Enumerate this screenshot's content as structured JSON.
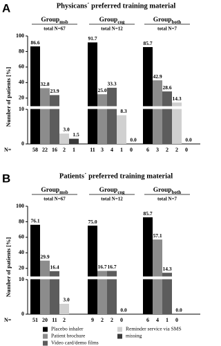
{
  "chart_data": [
    {
      "type": "bar",
      "panel_label": "A",
      "title": "Physicans´ preferred training material",
      "y_label": "Number of patients [%]",
      "n_label": "N=",
      "ylim": [
        0,
        100
      ],
      "ybreak": 10,
      "yticks": [
        0,
        10,
        20,
        40,
        60,
        80,
        100
      ],
      "groups": [
        {
          "name": "Group",
          "sub": "msb",
          "total": "total N=67"
        },
        {
          "name": "Group",
          "sub": "cog",
          "total": "total N=12"
        },
        {
          "name": "Group",
          "sub": "both",
          "total": "total N=7"
        }
      ],
      "series": [
        {
          "values": [
            86.6,
            91.7,
            85.7
          ],
          "value_labels": [
            "86.6",
            "91.7",
            "85.7"
          ],
          "counts": [
            58,
            11,
            6
          ]
        },
        {
          "values": [
            32.8,
            25.0,
            42.9
          ],
          "value_labels": [
            "32.8",
            "25.0",
            "42.9"
          ],
          "counts": [
            22,
            3,
            3
          ]
        },
        {
          "values": [
            23.9,
            33.3,
            28.6
          ],
          "value_labels": [
            "23.9",
            "33.3",
            "28.6"
          ],
          "counts": [
            16,
            4,
            2
          ]
        },
        {
          "values": [
            3.0,
            8.3,
            14.3
          ],
          "value_labels": [
            "3.0",
            "8.3",
            "14.3"
          ],
          "counts": [
            2,
            1,
            2
          ]
        },
        {
          "values": [
            1.5,
            0.0,
            0.0
          ],
          "value_labels": [
            "1.5",
            "0.0",
            "0.0"
          ],
          "counts": [
            1,
            0,
            0
          ]
        }
      ]
    },
    {
      "type": "bar",
      "panel_label": "B",
      "title": "Patients´ preferred training material",
      "y_label": "Number of patients [%]",
      "n_label": "N=",
      "ylim": [
        0,
        100
      ],
      "ybreak": 10,
      "yticks": [
        0,
        10,
        20,
        40,
        60,
        80,
        100
      ],
      "groups": [
        {
          "name": "Group",
          "sub": "msb",
          "total": "total N=67"
        },
        {
          "name": "Group",
          "sub": "cog",
          "total": "total N=12"
        },
        {
          "name": "Group",
          "sub": "both",
          "total": "total N=7"
        }
      ],
      "series": [
        {
          "values": [
            76.1,
            75.0,
            85.7
          ],
          "value_labels": [
            "76.1",
            "75.0",
            "85.7"
          ],
          "counts": [
            51,
            9,
            6
          ]
        },
        {
          "values": [
            29.9,
            16.7,
            57.1
          ],
          "value_labels": [
            "29.9",
            "16.7",
            "57.1"
          ],
          "counts": [
            20,
            2,
            4
          ]
        },
        {
          "values": [
            16.4,
            16.7,
            14.3
          ],
          "value_labels": [
            "16.4",
            "16.7",
            "14.3"
          ],
          "counts": [
            11,
            2,
            1
          ]
        },
        {
          "values": [
            3.0,
            0.0,
            0.0
          ],
          "value_labels": [
            "3.0",
            "0.0",
            "0.0"
          ],
          "counts": [
            2,
            0,
            0
          ]
        },
        {
          "values": [
            null,
            null,
            null
          ],
          "value_labels": [
            null,
            null,
            null
          ],
          "counts": [
            null,
            null,
            null
          ]
        }
      ]
    }
  ],
  "legend": [
    {
      "name": "Placebo inhaler",
      "color": "#000000"
    },
    {
      "name": "Patient brochure",
      "color": "#8c8c8c"
    },
    {
      "name": "Video card/demo films",
      "color": "#5c5c5c"
    },
    {
      "name": "Reminder service via SMS",
      "color": "#d0d0d0"
    },
    {
      "name": "missing",
      "color": "#3a3a3a"
    }
  ]
}
